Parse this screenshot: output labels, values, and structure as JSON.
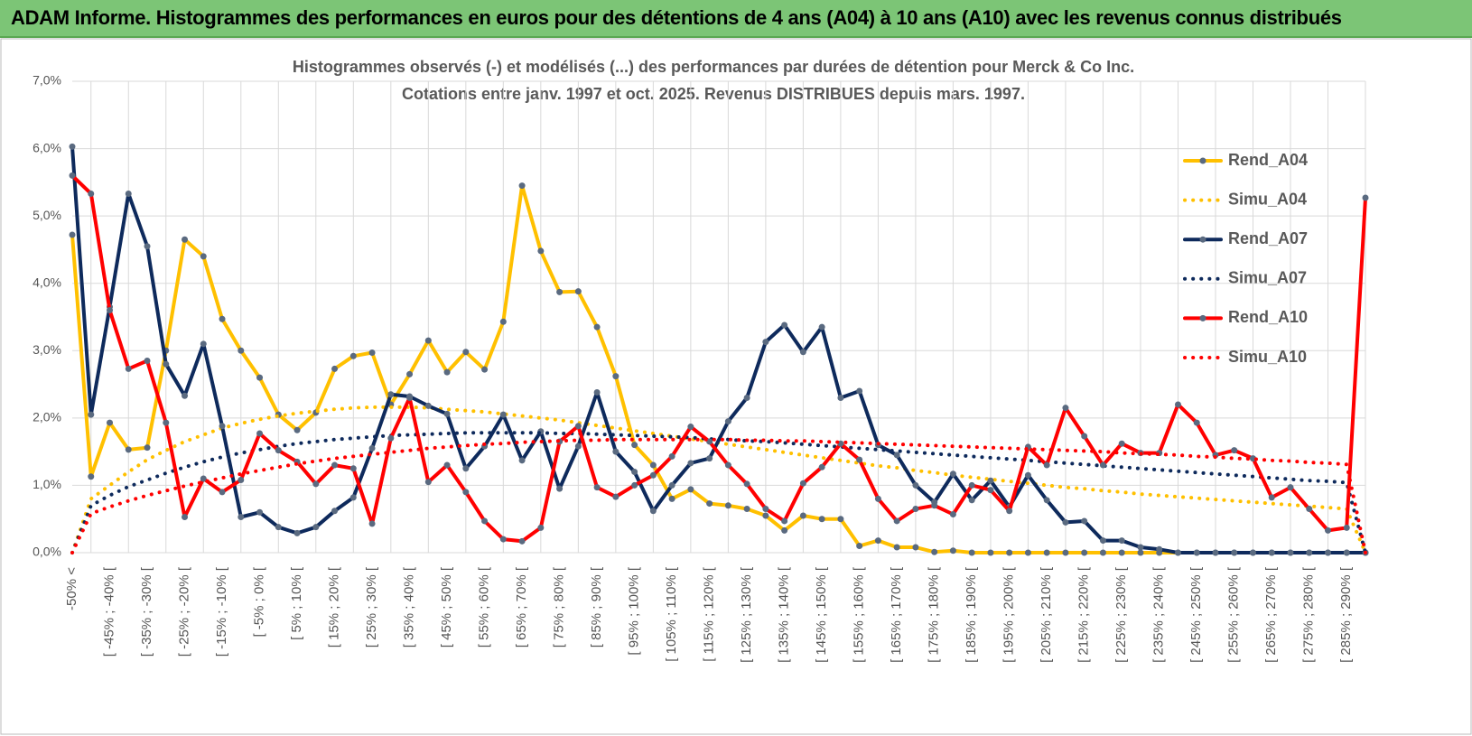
{
  "header": {
    "title": "ADAM Informe. Histogrammes des performances en euros pour des détentions de 4 ans (A04) à 10 ans (A10) avec les revenus connus distribués"
  },
  "chart_data": {
    "type": "line",
    "title": "Histogrammes observés (-) et modélisés (...) des performances par durées de détention pour Merck & Co Inc.",
    "subtitle": "Cotations entre janv. 1997 et oct. 2025.  Revenus DISTRIBUES depuis mars. 1997.",
    "categories": [
      "-50% <",
      null,
      "[ -45% ; -40% [",
      null,
      "[ -35% ; -30% [",
      null,
      "[ -25% ; -20% [",
      null,
      "[ -15% ; -10% [",
      null,
      "[ -5% ; 0% [",
      null,
      "[ 5% ; 10% [",
      null,
      "[ 15% ; 20% [",
      null,
      "[ 25% ; 30% [",
      null,
      "[ 35% ; 40% [",
      null,
      "[ 45% ; 50% [",
      null,
      "[ 55% ; 60% [",
      null,
      "[ 65% ; 70% [",
      null,
      "[ 75% ; 80% [",
      null,
      "[ 85% ; 90% [",
      null,
      "[ 95% ; 100% [",
      null,
      "[ 105% ; 110% [",
      null,
      "[ 115% ; 120% [",
      null,
      "[ 125% ; 130% [",
      null,
      "[ 135% ; 140% [",
      null,
      "[ 145% ; 150% [",
      null,
      "[ 155% ; 160% [",
      null,
      "[ 165% ; 170% [",
      null,
      "[ 175% ; 180% [",
      null,
      "[ 185% ; 190% [",
      null,
      "[ 195% ; 200% [",
      null,
      "[ 205% ; 210% [",
      null,
      "[ 215% ; 220% [",
      null,
      "[ 225% ; 230% [",
      null,
      "[ 235% ; 240% [",
      null,
      "[ 245% ; 250% [",
      null,
      "[ 255% ; 260% [",
      null,
      "[ 265% ; 270% [",
      null,
      "[ 275% ; 280% [",
      null,
      "[ 285% ; 290% [",
      null
    ],
    "ylim": [
      0,
      7
    ],
    "yticks": [
      {
        "value": 0,
        "label": "0,0%"
      },
      {
        "value": 1,
        "label": "1,0%"
      },
      {
        "value": 2,
        "label": "2,0%"
      },
      {
        "value": 3,
        "label": "3,0%"
      },
      {
        "value": 4,
        "label": "4,0%"
      },
      {
        "value": 5,
        "label": "5,0%"
      },
      {
        "value": 6,
        "label": "6,0%"
      },
      {
        "value": 7,
        "label": "7,0%"
      }
    ],
    "grid": true,
    "legend": "right",
    "series": [
      {
        "name": "Rend_A04",
        "color": "#ffc000",
        "style": "solid",
        "markers": true,
        "values": [
          4.72,
          1.13,
          1.93,
          1.53,
          1.56,
          3.0,
          4.65,
          4.4,
          3.47,
          3.0,
          2.6,
          2.05,
          1.82,
          2.08,
          2.73,
          2.92,
          2.97,
          2.2,
          2.65,
          3.15,
          2.68,
          2.98,
          2.72,
          3.43,
          5.45,
          4.48,
          3.87,
          3.88,
          3.35,
          2.62,
          1.6,
          1.3,
          0.8,
          0.94,
          0.73,
          0.7,
          0.65,
          0.55,
          0.33,
          0.55,
          0.5,
          0.5,
          0.1,
          0.18,
          0.08,
          0.08,
          0.01,
          0.03,
          0,
          0,
          0,
          0,
          0,
          0,
          0,
          0,
          0,
          0,
          0,
          0,
          0,
          0,
          0,
          0,
          0,
          0,
          0,
          0,
          0,
          0
        ]
      },
      {
        "name": "Simu_A04",
        "color": "#ffc000",
        "style": "dotted",
        "markers": false,
        "values": [
          0,
          0.8,
          1.0,
          1.2,
          1.38,
          1.52,
          1.65,
          1.75,
          1.85,
          1.92,
          1.98,
          2.03,
          2.07,
          2.1,
          2.13,
          2.15,
          2.16,
          2.16,
          2.16,
          2.15,
          2.13,
          2.11,
          2.09,
          2.06,
          2.03,
          2.0,
          1.97,
          1.93,
          1.89,
          1.85,
          1.81,
          1.77,
          1.73,
          1.69,
          1.65,
          1.61,
          1.57,
          1.53,
          1.49,
          1.45,
          1.41,
          1.37,
          1.33,
          1.29,
          1.26,
          1.22,
          1.19,
          1.15,
          1.12,
          1.09,
          1.06,
          1.03,
          1.0,
          0.97,
          0.95,
          0.92,
          0.9,
          0.87,
          0.85,
          0.83,
          0.81,
          0.79,
          0.77,
          0.75,
          0.73,
          0.71,
          0.69,
          0.67,
          0.65,
          0
        ]
      },
      {
        "name": "Rend_A07",
        "color": "#0e2a5c",
        "style": "solid",
        "markers": true,
        "values": [
          6.03,
          2.05,
          3.65,
          5.33,
          4.55,
          2.8,
          2.33,
          3.1,
          1.88,
          0.53,
          0.6,
          0.38,
          0.29,
          0.38,
          0.62,
          0.82,
          1.55,
          2.35,
          2.32,
          2.18,
          2.06,
          1.25,
          1.58,
          2.05,
          1.37,
          1.8,
          0.95,
          1.58,
          2.38,
          1.5,
          1.2,
          0.62,
          1.0,
          1.33,
          1.4,
          1.95,
          2.3,
          3.13,
          3.38,
          2.98,
          3.35,
          2.3,
          2.4,
          1.6,
          1.45,
          1.0,
          0.75,
          1.17,
          0.78,
          1.07,
          0.68,
          1.15,
          0.78,
          0.45,
          0.47,
          0.18,
          0.18,
          0.08,
          0.05,
          0,
          0,
          0,
          0,
          0,
          0,
          0,
          0,
          0,
          0,
          0
        ]
      },
      {
        "name": "Simu_A07",
        "color": "#0e2a5c",
        "style": "dotted",
        "markers": false,
        "values": [
          0,
          0.7,
          0.85,
          0.98,
          1.08,
          1.18,
          1.27,
          1.35,
          1.42,
          1.48,
          1.53,
          1.58,
          1.62,
          1.65,
          1.68,
          1.7,
          1.72,
          1.74,
          1.75,
          1.76,
          1.77,
          1.78,
          1.78,
          1.78,
          1.78,
          1.78,
          1.77,
          1.77,
          1.76,
          1.75,
          1.74,
          1.73,
          1.72,
          1.71,
          1.69,
          1.68,
          1.66,
          1.65,
          1.63,
          1.61,
          1.59,
          1.57,
          1.55,
          1.53,
          1.51,
          1.49,
          1.47,
          1.45,
          1.43,
          1.41,
          1.39,
          1.37,
          1.35,
          1.33,
          1.31,
          1.29,
          1.27,
          1.25,
          1.23,
          1.21,
          1.19,
          1.17,
          1.15,
          1.13,
          1.11,
          1.09,
          1.07,
          1.06,
          1.04,
          0
        ]
      },
      {
        "name": "Rend_A10",
        "color": "#ff0000",
        "style": "solid",
        "markers": true,
        "values": [
          5.6,
          5.33,
          3.6,
          2.73,
          2.85,
          1.93,
          0.53,
          1.1,
          0.9,
          1.08,
          1.77,
          1.52,
          1.35,
          1.02,
          1.3,
          1.25,
          0.43,
          1.7,
          2.3,
          1.05,
          1.3,
          0.9,
          0.47,
          0.2,
          0.17,
          0.37,
          1.65,
          1.88,
          0.97,
          0.83,
          1.0,
          1.15,
          1.43,
          1.87,
          1.65,
          1.3,
          1.02,
          0.65,
          0.47,
          1.03,
          1.27,
          1.62,
          1.38,
          0.8,
          0.47,
          0.65,
          0.7,
          0.57,
          1.0,
          0.93,
          0.62,
          1.57,
          1.3,
          2.15,
          1.73,
          1.3,
          1.62,
          1.48,
          1.48,
          2.2,
          1.93,
          1.45,
          1.52,
          1.4,
          0.82,
          0.97,
          0.65,
          0.33,
          0.37,
          5.27
        ]
      },
      {
        "name": "Simu_A10",
        "color": "#ff0000",
        "style": "dotted",
        "markers": false,
        "values": [
          0,
          0.58,
          0.68,
          0.77,
          0.85,
          0.92,
          0.99,
          1.05,
          1.11,
          1.17,
          1.22,
          1.27,
          1.32,
          1.36,
          1.4,
          1.43,
          1.46,
          1.49,
          1.52,
          1.55,
          1.57,
          1.59,
          1.61,
          1.62,
          1.64,
          1.65,
          1.66,
          1.67,
          1.67,
          1.68,
          1.68,
          1.68,
          1.68,
          1.68,
          1.68,
          1.68,
          1.67,
          1.67,
          1.66,
          1.66,
          1.65,
          1.64,
          1.63,
          1.62,
          1.61,
          1.6,
          1.59,
          1.58,
          1.57,
          1.56,
          1.55,
          1.54,
          1.53,
          1.52,
          1.51,
          1.5,
          1.48,
          1.47,
          1.46,
          1.45,
          1.43,
          1.42,
          1.4,
          1.39,
          1.37,
          1.36,
          1.34,
          1.33,
          1.31,
          0
        ]
      }
    ]
  }
}
